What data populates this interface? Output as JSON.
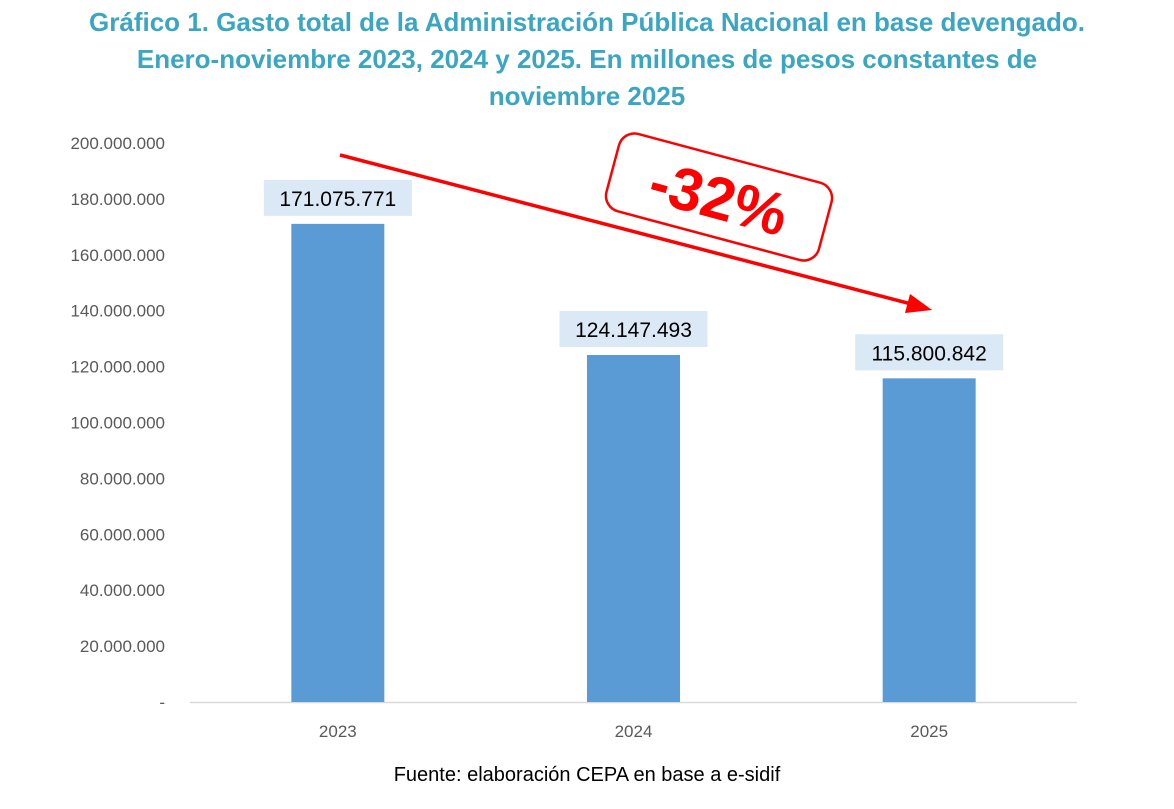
{
  "title_lines": [
    "Gráfico 1. Gasto total de la Administración Pública Nacional en base devengado.",
    "Enero-noviembre 2023, 2024 y 2025. En millones de pesos constantes de",
    "noviembre 2025"
  ],
  "source": "Fuente: elaboración CEPA en base a e-sidif",
  "colors": {
    "title": "#3aa6c2",
    "bar": "#5b9bd5",
    "data_label_bg": "#dbe8f5",
    "annotation": "#ff0000",
    "axis_text": "#595959",
    "axis_line": "#d9d9d9"
  },
  "chart_data": {
    "type": "bar",
    "title": "Gráfico 1. Gasto total de la Administración Pública Nacional en base devengado. Enero-noviembre 2023, 2024 y 2025. En millones de pesos constantes de noviembre 2025",
    "categories": [
      "2023",
      "2024",
      "2025"
    ],
    "values": [
      171075771,
      124147493,
      115800842
    ],
    "data_labels": [
      "171.075.771",
      "124.147.493",
      "115.800.842"
    ],
    "xlabel": "",
    "ylabel": "",
    "ylim": [
      0,
      200000000
    ],
    "y_ticks": [
      0,
      20000000,
      40000000,
      60000000,
      80000000,
      100000000,
      120000000,
      140000000,
      160000000,
      180000000,
      200000000
    ],
    "y_tick_labels": [
      "-",
      "20.000.000",
      "40.000.000",
      "60.000.000",
      "80.000.000",
      "100.000.000",
      "120.000.000",
      "140.000.000",
      "160.000.000",
      "180.000.000",
      "200.000.000"
    ],
    "grid": false,
    "legend": "none",
    "annotation": {
      "text": "-32%",
      "arrow": "red arrow pointing down from 2023 toward 2025"
    }
  }
}
